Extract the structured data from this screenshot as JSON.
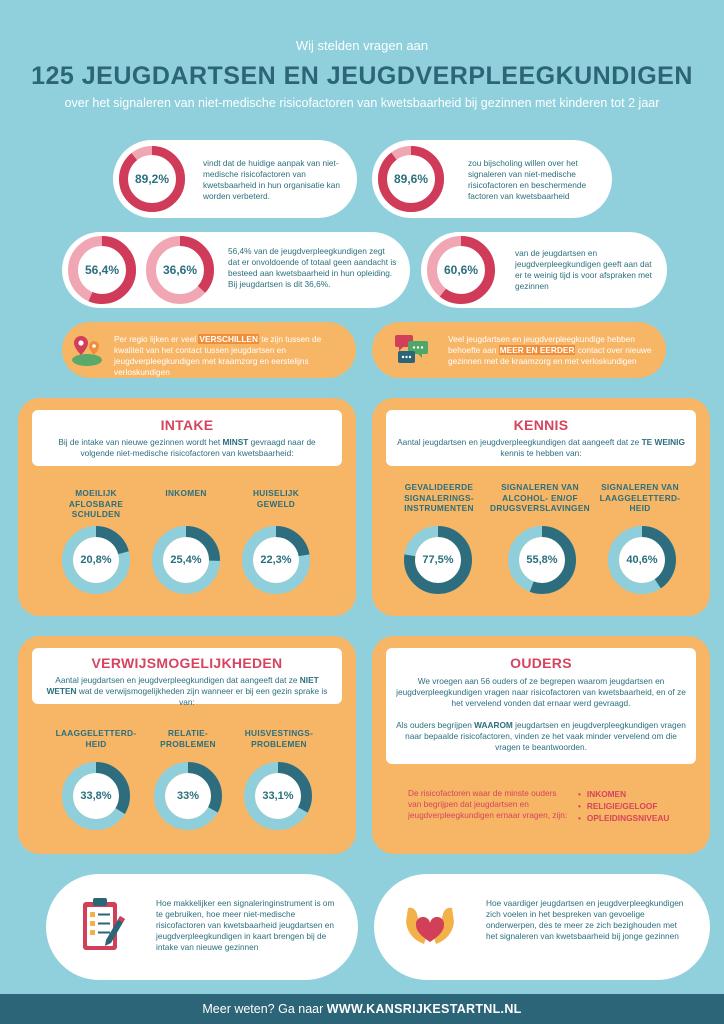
{
  "header": {
    "subtitle": "Wij stelden vragen aan",
    "title": "125 JEUGDARTSEN EN JEUGDVERPLEEGKUNDIGEN",
    "description": "over het signaleren van niet-medische risicofactoren van kwetsbaarheid bij gezinnen met kinderen tot 2 jaar"
  },
  "stats": {
    "s1": {
      "label": "89,2%",
      "value": 89.2,
      "text": "vindt dat de huidige aanpak van niet-medische risicofactoren van kwetsbaarheid in hun organisatie kan worden verbeterd."
    },
    "s2": {
      "label": "89,6%",
      "value": 89.6,
      "text": "zou bijscholing willen over het signaleren van niet-medische risicofactoren en beschermende factoren van kwetsbaarheid"
    },
    "s3a": {
      "label": "56,4%",
      "value": 56.4
    },
    "s3b": {
      "label": "36,6%",
      "value": 36.6
    },
    "s3_text": "56,4% van de jeugdverpleegkundigen zegt dat er onvoldoende of totaal geen aandacht is besteed aan kwetsbaarheid in hun opleiding. Bij jeugdartsen is dit 36,6%.",
    "s4": {
      "label": "60,6%",
      "value": 60.6,
      "text": "van de jeugdartsen en jeugdverpleegkundigen geeft aan dat er te weinig tijd is voor afspraken met gezinnen"
    }
  },
  "notes": {
    "n1": {
      "before": "Per regio lijken er veel ",
      "highlight": "VERSCHILLEN",
      "after": " te zijn tussen de kwaliteit van het contact tussen jeugdartsen en jeugdverpleegkundigen met kraamzorg en eerstelijns verloskundigen"
    },
    "n2": {
      "before": "Veel jeugdartsen en jeugdverpleegkundige hebben behoefte aan ",
      "highlight": "MEER EN EERDER",
      "after": " contact over nieuwe gezinnen met de kraamzorg en met verloskundigen"
    }
  },
  "intake": {
    "title": "INTAKE",
    "desc_before": "Bij de intake van nieuwe gezinnen wordt het ",
    "desc_bold": "MINST",
    "desc_after": " gevraagd naar de volgende niet-medische risicofactoren van kwetsbaarheid:",
    "items": [
      {
        "name": "MOEILIJK AFLOSBARE SCHULDEN",
        "label": "20,8%",
        "value": 20.8
      },
      {
        "name": "INKOMEN",
        "label": "25,4%",
        "value": 25.4
      },
      {
        "name": "HUISELIJK GEWELD",
        "label": "22,3%",
        "value": 22.3
      }
    ]
  },
  "kennis": {
    "title": "KENNIS",
    "desc_before": "Aantal jeugdartsen en jeugdverpleegkundigen dat aangeeft dat ze ",
    "desc_bold": "TE WEINIG",
    "desc_after": " kennis te hebben van:",
    "items": [
      {
        "name": "GEVALIDEERDE SIGNALERINGS-INSTRUMENTEN",
        "label": "77,5%",
        "value": 77.5
      },
      {
        "name": "SIGNALEREN VAN ALCOHOL- EN/OF DRUGSVERSLAVINGEN",
        "label": "55,8%",
        "value": 55.8
      },
      {
        "name": "SIGNALEREN VAN LAAGGELETTERD-HEID",
        "label": "40,6%",
        "value": 40.6
      }
    ]
  },
  "verwijs": {
    "title": "VERWIJSMOGELIJKHEDEN",
    "desc_before": "Aantal jeugdartsen en jeugdverpleegkundigen dat aangeeft dat ze ",
    "desc_bold": "NIET WETEN",
    "desc_after": " wat de verwijsmogelijkheden zijn wanneer er bij een gezin sprake is van:",
    "items": [
      {
        "name": "LAAGGELETTERD-HEID",
        "label": "33,8%",
        "value": 33.8
      },
      {
        "name": "RELATIE-PROBLEMEN",
        "label": "33%",
        "value": 33
      },
      {
        "name": "HUISVESTINGS-PROBLEMEN",
        "label": "33,1%",
        "value": 33.1
      }
    ]
  },
  "ouders": {
    "title": "OUDERS",
    "p1": "We vroegen aan 56 ouders of ze begrepen waarom jeugdartsen en jeugdverpleegkundigen vragen naar risicofactoren van kwetsbaarheid, en of ze het vervelend vonden dat ernaar werd gevraagd.",
    "p2_before": "Als ouders begrijpen ",
    "p2_bold": "WAAROM",
    "p2_after": " jeugdartsen en jeugdverpleegkundigen vragen naar bepaalde risicofactoren, vinden ze het vaak minder vervelend om die vragen te beantwoorden.",
    "note": "De risicofactoren waar de minste ouders van begrijpen dat jeugdartsen en jeugdverpleegkundigen ernaar vragen, zijn:",
    "list": [
      "INKOMEN",
      "RELIGIE/GELOOF",
      "OPLEIDINGSNIVEAU"
    ]
  },
  "bottom": {
    "b1": "Hoe makkelijker een signaleringinstrument is om te gebruiken, hoe meer niet-medische risicofactoren van kwetsbaarheid jeugdartsen en jeugdverpleegkundigen in kaart brengen bij de intake van nieuwe gezinnen",
    "b2": "Hoe vaardiger jeugdartsen en jeugdverpleegkundigen zich voelen in het bespreken van gevoelige onderwerpen, des te meer ze zich bezighouden met het signaleren van kwetsbaarheid bij jonge gezinnen"
  },
  "footer": {
    "lead": "Meer weten? Ga naar ",
    "url": "WWW.KANSRIJKESTARTNL.NL"
  },
  "colors": {
    "background": "#8fd0dc",
    "navy": "#2b6577",
    "red": "#cf3b59",
    "pink_track": "#f0a6b3",
    "orange": "#f7b566",
    "teal_fill": "#2d6d7e",
    "teal_track": "#8fcfdb"
  },
  "icons": [
    "map-pin-icon",
    "chat-bubbles-icon",
    "clipboard-icon",
    "heart-hands-icon"
  ]
}
